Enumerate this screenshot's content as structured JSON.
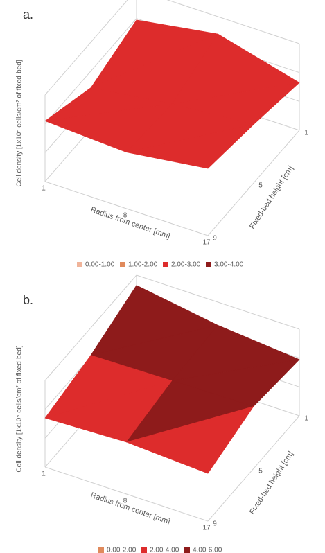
{
  "chart_data": [
    {
      "type": "surface",
      "panel_label": "a.",
      "y_label": "Cell density [1x10⁵ cells/cm² of fixed-bed]",
      "x_label": "Radius from center [mm]",
      "z_label": "Fixed-bed height [cm]",
      "categories": [
        "1",
        "8",
        "17"
      ],
      "depth_categories": [
        "1",
        "5",
        "9"
      ],
      "values": [
        [
          2.6,
          3.2,
          2.2
        ],
        [
          1.9,
          2.4,
          2.7
        ],
        [
          2.8,
          2.6,
          3.1
        ]
      ],
      "ylim": [
        0,
        4
      ],
      "band_edges": [
        0,
        1,
        2,
        3,
        4
      ],
      "legend": [
        {
          "label": "0.00-1.00",
          "color": "#f0b49a"
        },
        {
          "label": "1.00-2.00",
          "color": "#e08a5c"
        },
        {
          "label": "2.00-3.00",
          "color": "#dd2c2c"
        },
        {
          "label": "3.00-4.00",
          "color": "#8e1b1b"
        }
      ]
    },
    {
      "type": "surface",
      "panel_label": "b.",
      "y_label": "Cell density [1x10⁵ cells/cm² of fixed-bed]",
      "x_label": "Radius from center [mm]",
      "z_label": "Fixed-bed height [cm]",
      "categories": [
        "1",
        "8",
        "17"
      ],
      "depth_categories": [
        "1",
        "5",
        "9"
      ],
      "values": [
        [
          5.3,
          4.4,
          3.9
        ],
        [
          4.1,
          4.2,
          4.3
        ],
        [
          3.4,
          3.6,
          3.3
        ]
      ],
      "ylim": [
        0,
        6
      ],
      "band_edges": [
        0,
        2,
        4,
        6
      ],
      "legend": [
        {
          "label": "0.00-2.00",
          "color": "#e08a5c"
        },
        {
          "label": "2.00-4.00",
          "color": "#dd2c2c"
        },
        {
          "label": "4.00-6.00",
          "color": "#8e1b1b"
        }
      ]
    }
  ]
}
